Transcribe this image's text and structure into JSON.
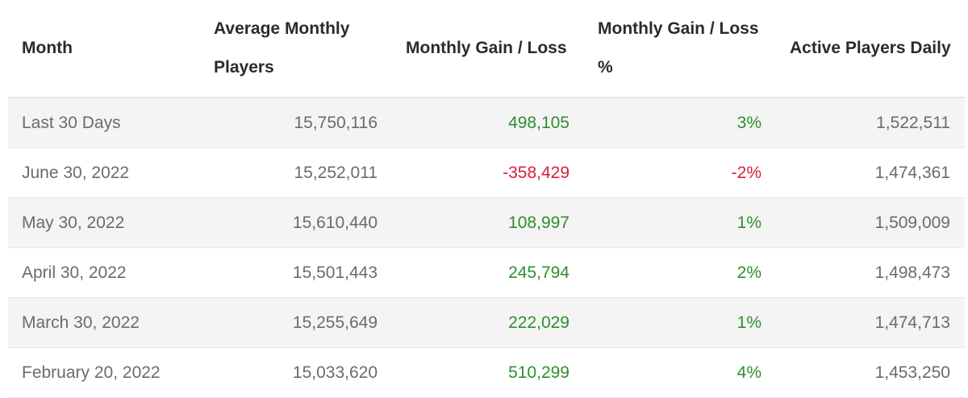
{
  "chart_data": {
    "type": "table",
    "headers": [
      "Month",
      "Average Monthly Players",
      "Monthly Gain / Loss",
      "Monthly Gain / Loss %",
      "Active Players Daily"
    ],
    "rows": [
      [
        "Last 30 Days",
        "15,750,116",
        "498,105",
        "3%",
        "1,522,511"
      ],
      [
        "June 30, 2022",
        "15,252,011",
        "-358,429",
        "-2%",
        "1,474,361"
      ],
      [
        "May 30, 2022",
        "15,610,440",
        "108,997",
        "1%",
        "1,509,009"
      ],
      [
        "April 30, 2022",
        "15,501,443",
        "245,794",
        "2%",
        "1,498,473"
      ],
      [
        "March 30, 2022",
        "15,255,649",
        "222,029",
        "1%",
        "1,474,713"
      ],
      [
        "February 20, 2022",
        "15,033,620",
        "510,299",
        "4%",
        "1,453,250"
      ]
    ]
  },
  "colors": {
    "gain": "#2d8f2d",
    "loss": "#d8203a",
    "stripe": "#f4f4f4"
  }
}
